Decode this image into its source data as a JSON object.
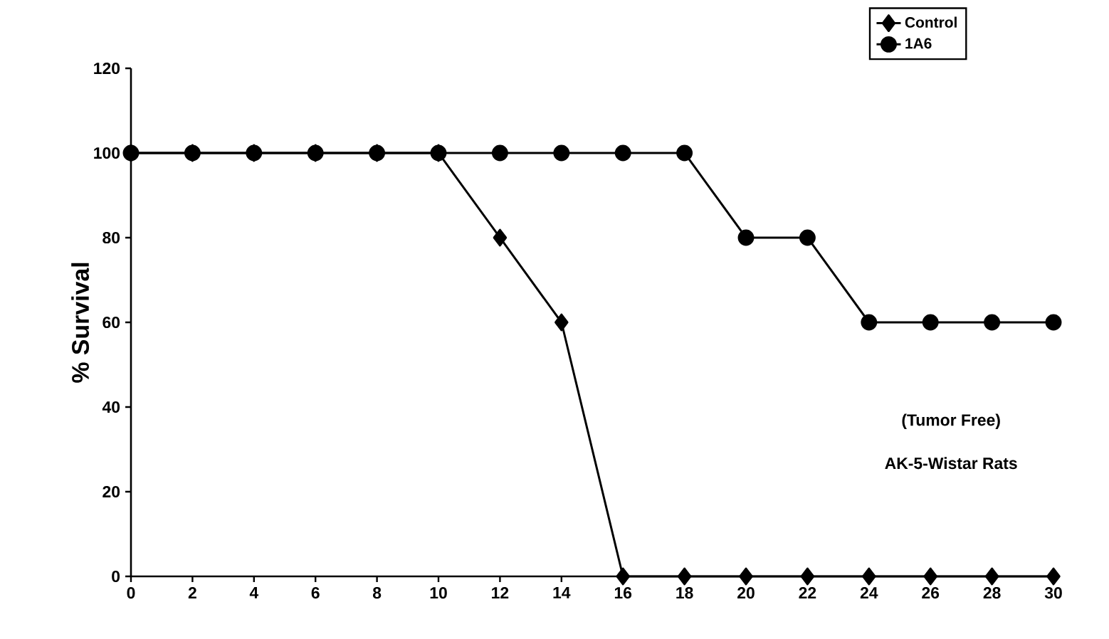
{
  "chart_data": {
    "type": "line",
    "ylabel": "% Survival",
    "x": [
      0,
      2,
      4,
      6,
      8,
      10,
      12,
      14,
      16,
      18,
      20,
      22,
      24,
      26,
      28,
      30
    ],
    "series": [
      {
        "name": "Control",
        "color": "#000000",
        "marker": "diamond",
        "values": [
          100,
          100,
          100,
          100,
          100,
          100,
          80,
          60,
          0,
          0,
          0,
          0,
          0,
          0,
          0,
          0
        ]
      },
      {
        "name": "1A6",
        "color": "#000000",
        "marker": "circle",
        "values": [
          100,
          100,
          100,
          100,
          100,
          100,
          100,
          100,
          100,
          100,
          80,
          80,
          60,
          60,
          60,
          60
        ]
      }
    ],
    "xlim": [
      0,
      30
    ],
    "ylim": [
      0,
      120
    ],
    "xticks": [
      0,
      2,
      4,
      6,
      8,
      10,
      12,
      14,
      16,
      18,
      20,
      22,
      24,
      26,
      28,
      30
    ],
    "yticks": [
      0,
      20,
      40,
      60,
      80,
      100,
      120
    ],
    "annotations": [
      "(Tumor Free)",
      "AK-5-Wistar Rats"
    ],
    "legend": "top right",
    "grid": false,
    "line_style": "solid"
  }
}
